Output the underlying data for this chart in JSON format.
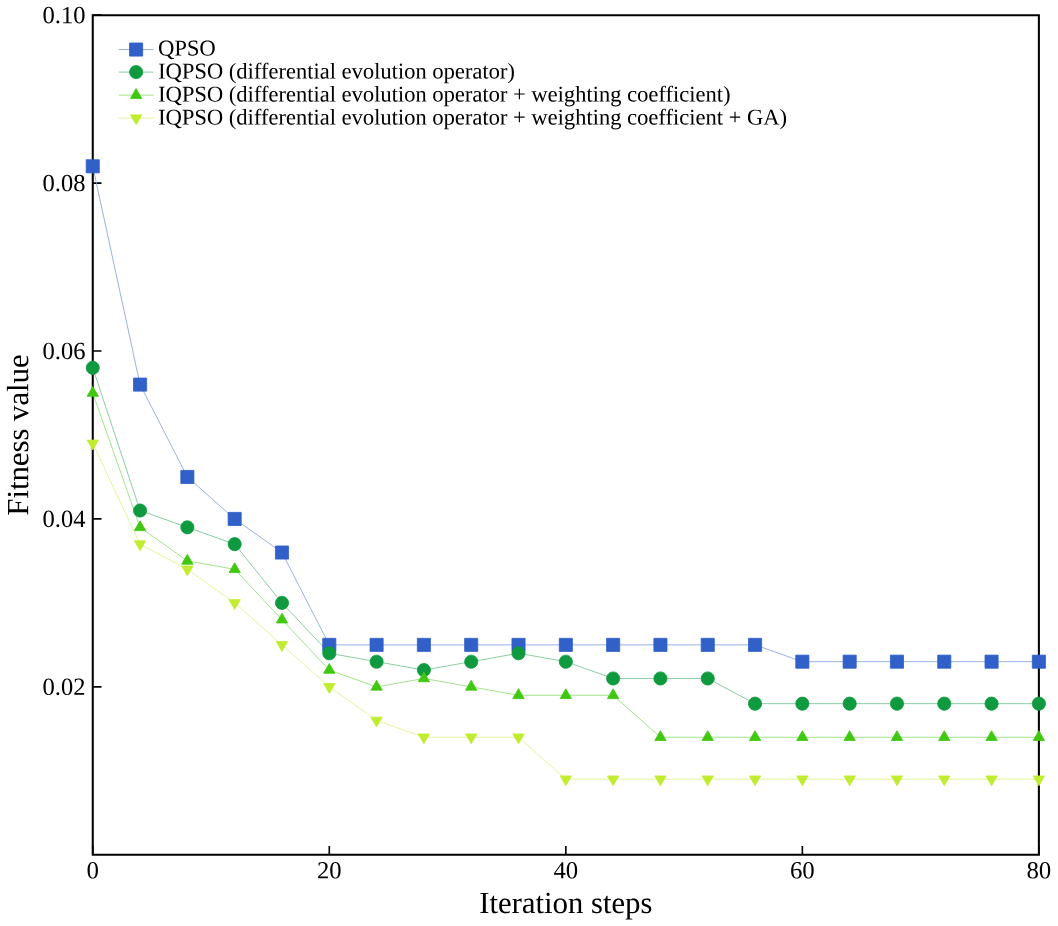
{
  "chart_data": {
    "type": "line",
    "xlabel": "Iteration steps",
    "ylabel": "Fitness value",
    "x": [
      0,
      4,
      8,
      12,
      16,
      20,
      24,
      28,
      32,
      36,
      40,
      44,
      48,
      52,
      56,
      60,
      64,
      68,
      72,
      76,
      80
    ],
    "xlim": [
      0,
      80
    ],
    "xticks": [
      0,
      20,
      40,
      60,
      80
    ],
    "ylim": [
      0,
      0.1
    ],
    "yticks": [
      {
        "value": 0.02,
        "label": "0.02"
      },
      {
        "value": 0.04,
        "label": "0.04"
      },
      {
        "value": 0.06,
        "label": "0.06"
      },
      {
        "value": 0.08,
        "label": "0.08"
      },
      {
        "value": 0.1,
        "label": "0.10"
      }
    ],
    "legend": "top left",
    "grid": false,
    "series": [
      {
        "name": "QPSO",
        "color": "#3060c8",
        "marker": "square",
        "values": [
          0.082,
          0.056,
          0.045,
          0.04,
          0.036,
          0.025,
          0.025,
          0.025,
          0.025,
          0.025,
          0.025,
          0.025,
          0.025,
          0.025,
          0.025,
          0.023,
          0.023,
          0.023,
          0.023,
          0.023,
          0.023
        ]
      },
      {
        "name": "IQPSO (differential evolution operator)",
        "color": "#109a40",
        "marker": "circle",
        "values": [
          0.058,
          0.041,
          0.039,
          0.037,
          0.03,
          0.024,
          0.023,
          0.022,
          0.023,
          0.024,
          0.023,
          0.021,
          0.021,
          0.021,
          0.018,
          0.018,
          0.018,
          0.018,
          0.018,
          0.018,
          0.018
        ]
      },
      {
        "name": "IQPSO (differential evolution operator + weighting coefficient)",
        "color": "#40c810",
        "marker": "triangle",
        "values": [
          0.055,
          0.039,
          0.035,
          0.034,
          0.028,
          0.022,
          0.02,
          0.021,
          0.02,
          0.019,
          0.019,
          0.019,
          0.014,
          0.014,
          0.014,
          0.014,
          0.014,
          0.014,
          0.014,
          0.014,
          0.014
        ]
      },
      {
        "name": "IQPSO (differential evolution operator + weighting coefficient + GA)",
        "color": "#c0ec30",
        "marker": "triangle down",
        "values": [
          0.049,
          0.037,
          0.034,
          0.03,
          0.025,
          0.02,
          0.016,
          0.014,
          0.014,
          0.014,
          0.009,
          0.009,
          0.009,
          0.009,
          0.009,
          0.009,
          0.009,
          0.009,
          0.009,
          0.009,
          0.009
        ]
      }
    ]
  }
}
